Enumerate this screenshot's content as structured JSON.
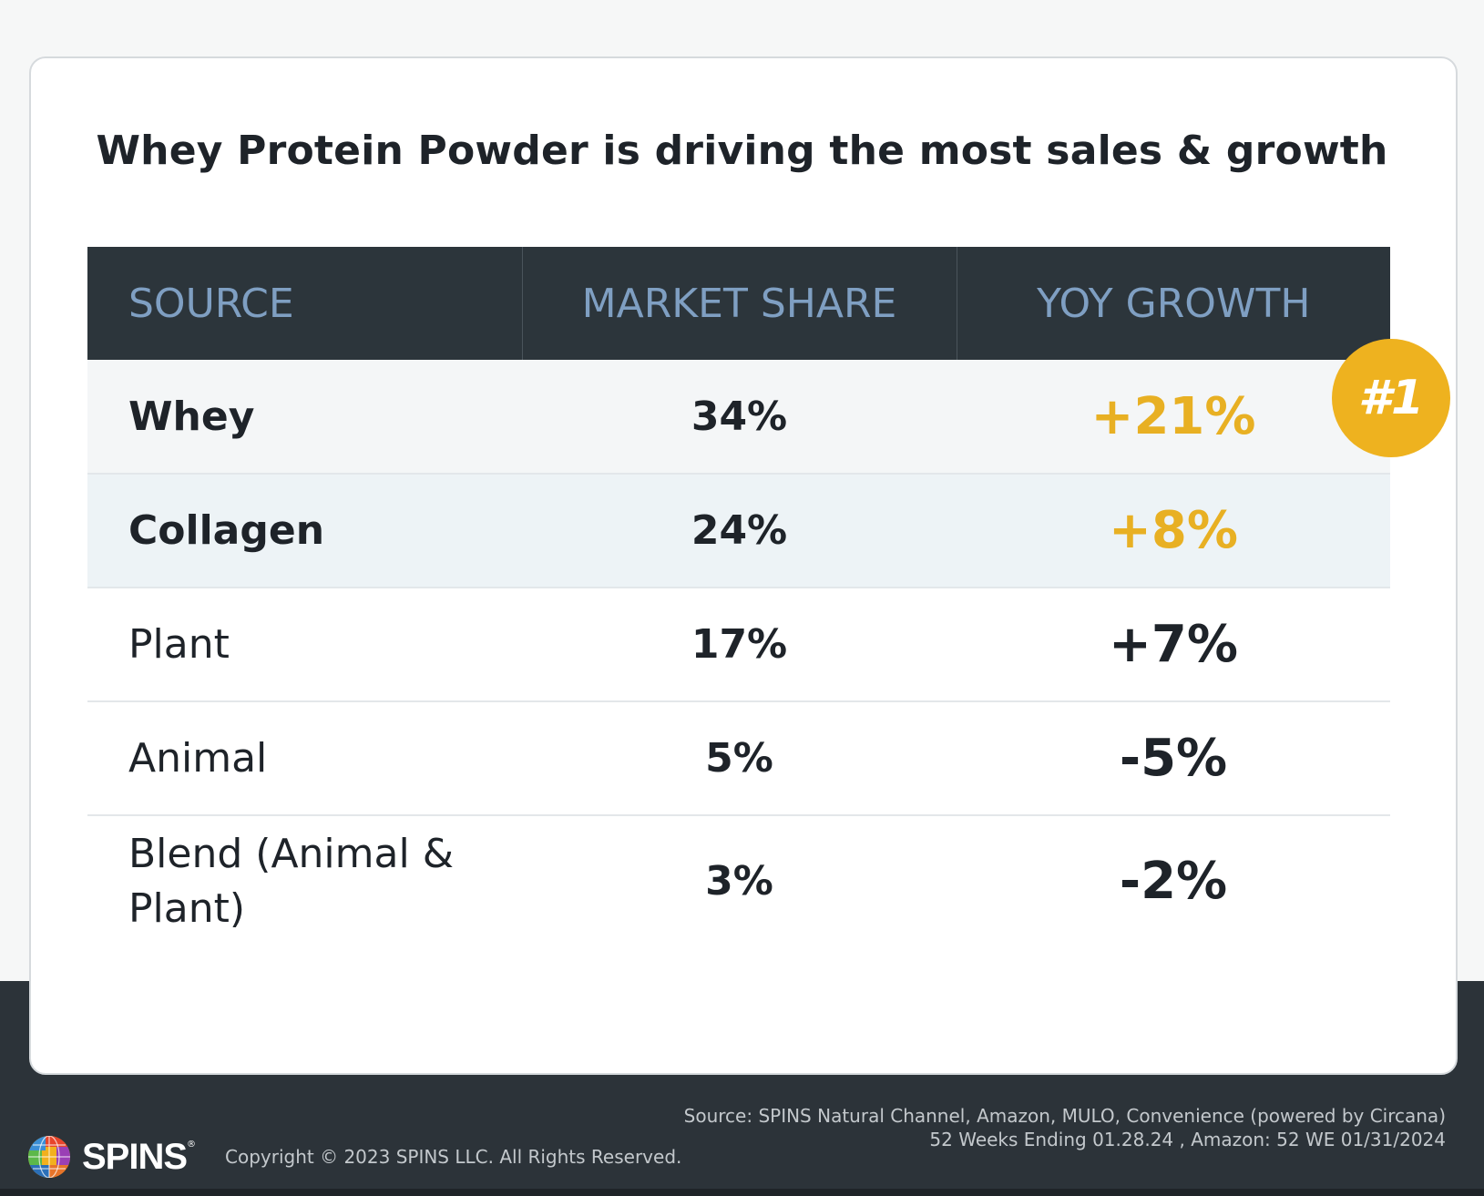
{
  "chart_data": {
    "type": "table",
    "title": "Whey Protein Powder is driving the most sales & growth",
    "columns": [
      "SOURCE",
      "MARKET SHARE",
      "YOY GROWTH"
    ],
    "rows": [
      {
        "source": "Whey",
        "market_share": "34%",
        "yoy_growth": "+21%"
      },
      {
        "source": "Collagen",
        "market_share": "24%",
        "yoy_growth": "+8%"
      },
      {
        "source": "Plant",
        "market_share": "17%",
        "yoy_growth": "+7%"
      },
      {
        "source": "Animal",
        "market_share": "5%",
        "yoy_growth": "-5%"
      },
      {
        "source": "Blend (Animal & Plant)",
        "market_share": "3%",
        "yoy_growth": "-2%"
      }
    ],
    "highlight_badge": "#1",
    "highlight_color": "#e8b023"
  },
  "footer": {
    "logo_text": "SPINS",
    "logo_mark": "®",
    "copyright": "Copyright © 2023 SPINS LLC. All Rights Reserved.",
    "source_line1": "Source: SPINS Natural Channel, Amazon, MULO, Convenience  (powered by Circana)",
    "source_line2": "52 Weeks Ending 01.28.24 , Amazon: 52 WE 01/31/2024"
  },
  "colors": {
    "header_bg": "#2c353b",
    "header_text": "#7f9fc2",
    "badge": "#eeb21f",
    "footer_bg": "#2c3339"
  }
}
